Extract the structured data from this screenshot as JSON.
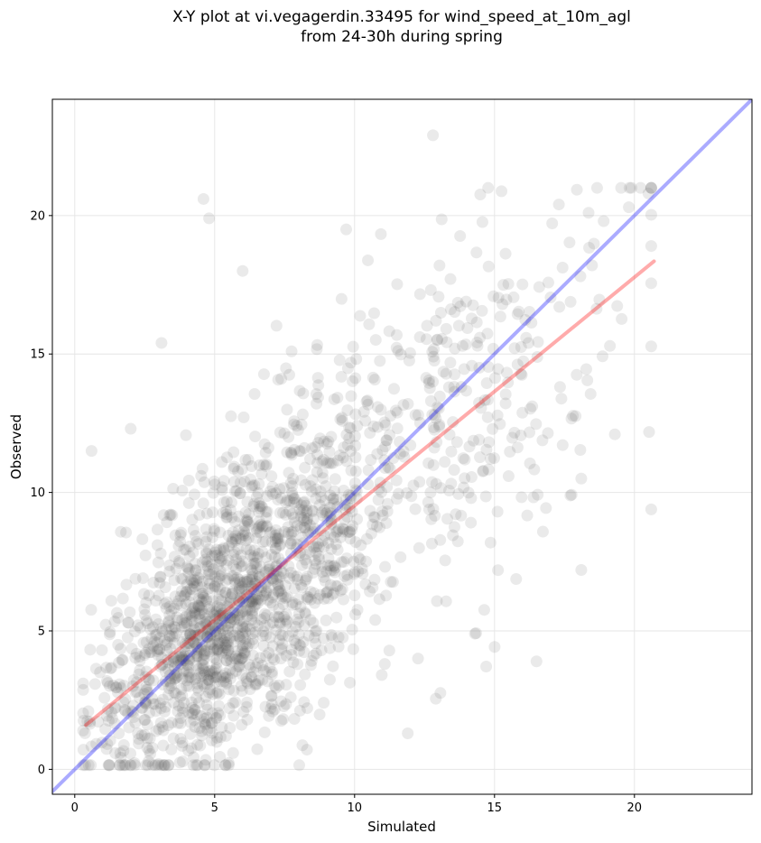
{
  "chart_data": {
    "type": "scatter",
    "title_line1": "X-Y plot at vi.vegagerdin.33495 for wind_speed_at_10m_agl",
    "title_line2": "from 24-30h during spring",
    "xlabel": "Simulated",
    "ylabel": "Observed",
    "xlim": [
      -0.8,
      24.2
    ],
    "ylim": [
      -0.9,
      24.2
    ],
    "xticks": [
      0,
      5,
      10,
      15,
      20
    ],
    "yticks": [
      0,
      5,
      10,
      15,
      20
    ],
    "grid": true,
    "point_color": "#555555",
    "point_opacity": 0.12,
    "series": [
      {
        "type": "reference-line",
        "x": [
          -0.8,
          24.2
        ],
        "y": [
          -0.8,
          24.2
        ],
        "color": "#0000ff"
      },
      {
        "type": "regression-line",
        "x": [
          0.4,
          20.7
        ],
        "y": [
          1.6,
          18.35
        ],
        "color": "#ff0000"
      }
    ],
    "notable_points": [
      {
        "x": 12.8,
        "y": 22.9
      },
      {
        "x": 4.6,
        "y": 20.6
      },
      {
        "x": 4.8,
        "y": 19.9
      },
      {
        "x": 0.6,
        "y": 11.5
      },
      {
        "x": 3.1,
        "y": 15.4
      },
      {
        "x": 20.6,
        "y": 18.9
      },
      {
        "x": 20.5,
        "y": 20.8
      },
      {
        "x": 16.5,
        "y": 3.9
      },
      {
        "x": 14.3,
        "y": 4.9
      },
      {
        "x": 6.0,
        "y": 18.0
      },
      {
        "x": 17.3,
        "y": 20.4
      },
      {
        "x": 19.8,
        "y": 20.3
      },
      {
        "x": 18.9,
        "y": 19.8
      },
      {
        "x": 18.1,
        "y": 10.5
      },
      {
        "x": 18.1,
        "y": 7.2
      },
      {
        "x": 19.3,
        "y": 12.1
      },
      {
        "x": 9.7,
        "y": 19.5
      },
      {
        "x": 11.9,
        "y": 1.3
      },
      {
        "x": 2.0,
        "y": 12.3
      }
    ]
  }
}
